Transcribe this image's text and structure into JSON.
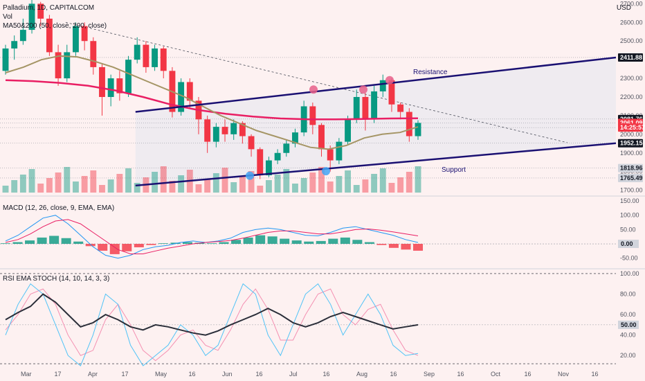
{
  "header": {
    "symbol_title": "Palladium, 1D, CAPITALCOM",
    "vol_label": "Vol",
    "ma_label": "MA50&200 (50, close, 200, close)",
    "currency": "USD"
  },
  "annotations": {
    "resistance": "Resistance",
    "support": "Support"
  },
  "price_tags": [
    {
      "label": "2411.88",
      "value": 2411.88,
      "bg": "#131722",
      "fg": "#ffffff"
    },
    {
      "label": "2081.76",
      "value": 2081.76,
      "bg": "#131722",
      "fg": "#ffffff"
    },
    {
      "label": "2061.09",
      "value": 2061.09,
      "bg": "#f23645",
      "fg": "#ffffff"
    },
    {
      "label": "14:25:57",
      "value": 2036,
      "bg": "#f23645",
      "fg": "#ffffff"
    },
    {
      "label": "1952.15",
      "value": 1952.15,
      "bg": "#131722",
      "fg": "#ffffff"
    },
    {
      "label": "1818.96",
      "value": 1818.96,
      "bg": "#d1d4dc",
      "fg": "#131722"
    },
    {
      "label": "1765.49",
      "value": 1765.49,
      "bg": "#d1d4dc",
      "fg": "#131722"
    }
  ],
  "macd_panel": {
    "title": "MACD (12, 26, close, 9, EMA, EMA)",
    "ticks": [
      "150.00",
      "100.00",
      "50.00",
      "0.00",
      "-50.00"
    ],
    "tick_values": [
      150,
      100,
      50,
      0,
      -50
    ],
    "last_tag": "0.00"
  },
  "rsi_panel": {
    "title": "RSI EMA STOCH (14, 10, 14, 3, 3)",
    "ticks": [
      "100.00",
      "80.00",
      "60.00",
      "40.00",
      "20.00"
    ],
    "tick_values": [
      100,
      80,
      60,
      40,
      20
    ],
    "last_tag": "50.00"
  },
  "colors": {
    "background": "#fdf1f1",
    "up": "#089981",
    "down": "#f23645",
    "ma50": "#a59565",
    "ma200": "#e91e63",
    "channel": "#1a1072",
    "macd_line": "#2196f3",
    "signal_line": "#e91e63"
  },
  "chart_data": {
    "type": "candlestick",
    "title": "Palladium, 1D, CAPITALCOM",
    "ylabel": "USD",
    "y_ticks": [
      2700,
      2600,
      2500,
      2400,
      2300,
      2200,
      2100,
      2000,
      1900,
      1800,
      1700
    ],
    "ylim": [
      1680,
      2720
    ],
    "x_tick_labels": [
      "Mar",
      "17",
      "Apr",
      "17",
      "May",
      "16",
      "Jun",
      "16",
      "Jul",
      "16",
      "Aug",
      "16",
      "Sep",
      "16",
      "Oct",
      "16",
      "Nov",
      "16"
    ],
    "candles_approx": [
      {
        "o": 2340,
        "c": 2460,
        "h": 2480,
        "l": 2320
      },
      {
        "o": 2460,
        "c": 2500,
        "h": 2530,
        "l": 2400
      },
      {
        "o": 2500,
        "c": 2560,
        "h": 2620,
        "l": 2480
      },
      {
        "o": 2560,
        "c": 2700,
        "h": 2720,
        "l": 2540
      },
      {
        "o": 2700,
        "c": 2620,
        "h": 2710,
        "l": 2580
      },
      {
        "o": 2620,
        "c": 2440,
        "h": 2640,
        "l": 2420
      },
      {
        "o": 2440,
        "c": 2300,
        "h": 2480,
        "l": 2260
      },
      {
        "o": 2300,
        "c": 2440,
        "h": 2480,
        "l": 2280
      },
      {
        "o": 2440,
        "c": 2580,
        "h": 2600,
        "l": 2420
      },
      {
        "o": 2580,
        "c": 2500,
        "h": 2600,
        "l": 2450
      },
      {
        "o": 2500,
        "c": 2360,
        "h": 2520,
        "l": 2320
      },
      {
        "o": 2360,
        "c": 2200,
        "h": 2380,
        "l": 2100
      },
      {
        "o": 2200,
        "c": 2300,
        "h": 2320,
        "l": 2150
      },
      {
        "o": 2300,
        "c": 2220,
        "h": 2340,
        "l": 2180
      },
      {
        "o": 2220,
        "c": 2400,
        "h": 2420,
        "l": 2200
      },
      {
        "o": 2400,
        "c": 2480,
        "h": 2520,
        "l": 2380
      },
      {
        "o": 2480,
        "c": 2360,
        "h": 2500,
        "l": 2330
      },
      {
        "o": 2360,
        "c": 2460,
        "h": 2480,
        "l": 2340
      },
      {
        "o": 2460,
        "c": 2340,
        "h": 2470,
        "l": 2300
      },
      {
        "o": 2340,
        "c": 2120,
        "h": 2360,
        "l": 2090
      },
      {
        "o": 2120,
        "c": 2280,
        "h": 2300,
        "l": 2100
      },
      {
        "o": 2280,
        "c": 2180,
        "h": 2300,
        "l": 2140
      },
      {
        "o": 2180,
        "c": 2080,
        "h": 2200,
        "l": 2000
      },
      {
        "o": 2080,
        "c": 1960,
        "h": 2100,
        "l": 1900
      },
      {
        "o": 1960,
        "c": 2040,
        "h": 2060,
        "l": 1930
      },
      {
        "o": 2040,
        "c": 2000,
        "h": 2080,
        "l": 1960
      },
      {
        "o": 2000,
        "c": 2060,
        "h": 2080,
        "l": 1970
      },
      {
        "o": 2060,
        "c": 1990,
        "h": 2070,
        "l": 1950
      },
      {
        "o": 1990,
        "c": 1920,
        "h": 2000,
        "l": 1880
      },
      {
        "o": 1920,
        "c": 1780,
        "h": 1930,
        "l": 1760
      },
      {
        "o": 1780,
        "c": 1860,
        "h": 1880,
        "l": 1770
      },
      {
        "o": 1860,
        "c": 1900,
        "h": 1920,
        "l": 1840
      },
      {
        "o": 1900,
        "c": 1950,
        "h": 1970,
        "l": 1880
      },
      {
        "o": 1950,
        "c": 2010,
        "h": 2030,
        "l": 1930
      },
      {
        "o": 2010,
        "c": 2150,
        "h": 2180,
        "l": 1990
      },
      {
        "o": 2150,
        "c": 2050,
        "h": 2170,
        "l": 2000
      },
      {
        "o": 2050,
        "c": 1920,
        "h": 2060,
        "l": 1880
      },
      {
        "o": 1920,
        "c": 1860,
        "h": 1940,
        "l": 1800
      },
      {
        "o": 1860,
        "c": 1960,
        "h": 1980,
        "l": 1840
      },
      {
        "o": 1960,
        "c": 2080,
        "h": 2100,
        "l": 1940
      },
      {
        "o": 2080,
        "c": 2200,
        "h": 2240,
        "l": 2060
      },
      {
        "o": 2200,
        "c": 2080,
        "h": 2220,
        "l": 2020
      },
      {
        "o": 2080,
        "c": 2230,
        "h": 2260,
        "l": 2060
      },
      {
        "o": 2230,
        "c": 2290,
        "h": 2320,
        "l": 2200
      },
      {
        "o": 2290,
        "c": 2160,
        "h": 2300,
        "l": 2120
      },
      {
        "o": 2160,
        "c": 2120,
        "h": 2170,
        "l": 2080
      },
      {
        "o": 2120,
        "c": 1990,
        "h": 2140,
        "l": 1960
      },
      {
        "o": 1990,
        "c": 2061,
        "h": 2075,
        "l": 1970
      }
    ],
    "ma50_approx": [
      2330,
      2360,
      2400,
      2420,
      2415,
      2390,
      2360,
      2320,
      2280,
      2240,
      2200,
      2150,
      2100,
      2060,
      2020,
      1990,
      1960,
      1930,
      1920,
      1940,
      1980,
      2000,
      2010,
      2040
    ],
    "ma200_approx": [
      2290,
      2285,
      2275,
      2260,
      2235,
      2200,
      2160,
      2130,
      2110,
      2095,
      2085,
      2080,
      2080,
      2082,
      2085,
      2086
    ],
    "channel": {
      "upper": [
        {
          "x": 0.22,
          "y": 2120
        },
        {
          "x": 1.0,
          "y": 2411.88
        }
      ],
      "lower": [
        {
          "x": 0.22,
          "y": 1725
        },
        {
          "x": 1.0,
          "y": 1952.15
        }
      ]
    },
    "volume_note": "volume bars overlaid at bottom of price pane",
    "macd_hist_approx": [
      2,
      6,
      12,
      22,
      28,
      20,
      8,
      -8,
      -24,
      -36,
      -26,
      -12,
      -4,
      2,
      4,
      6,
      4,
      2,
      6,
      14,
      22,
      30,
      26,
      18,
      12,
      8,
      10,
      18,
      22,
      14,
      6,
      -4,
      -14,
      -20,
      -24
    ],
    "macd_line_approx": [
      10,
      30,
      60,
      90,
      100,
      70,
      30,
      -10,
      -40,
      -50,
      -40,
      -20,
      -10,
      -5,
      5,
      10,
      5,
      10,
      20,
      40,
      50,
      55,
      50,
      40,
      30,
      28,
      40,
      55,
      60,
      50,
      40,
      30,
      15,
      5
    ],
    "signal_line_approx": [
      5,
      15,
      35,
      60,
      80,
      85,
      70,
      40,
      10,
      -20,
      -35,
      -35,
      -25,
      -15,
      -8,
      0,
      5,
      8,
      12,
      20,
      30,
      40,
      45,
      45,
      40,
      35,
      35,
      42,
      50,
      52,
      48,
      42,
      35,
      28
    ],
    "rsi_approx": [
      55,
      62,
      68,
      80,
      72,
      60,
      48,
      52,
      60,
      55,
      48,
      45,
      50,
      48,
      45,
      42,
      40,
      44,
      50,
      55,
      60,
      66,
      60,
      52,
      48,
      52,
      58,
      62,
      58,
      54,
      50,
      46,
      48,
      50
    ],
    "stoch_k_approx": [
      40,
      70,
      90,
      80,
      50,
      20,
      10,
      40,
      80,
      70,
      30,
      10,
      20,
      30,
      50,
      40,
      20,
      30,
      60,
      90,
      80,
      40,
      20,
      50,
      80,
      90,
      70,
      40,
      60,
      80,
      60,
      30,
      20,
      22
    ],
    "stoch_d_approx": [
      45,
      60,
      80,
      85,
      70,
      40,
      20,
      25,
      55,
      70,
      50,
      25,
      15,
      25,
      40,
      45,
      30,
      25,
      45,
      70,
      85,
      65,
      35,
      35,
      60,
      80,
      85,
      60,
      50,
      65,
      70,
      45,
      25,
      20
    ]
  }
}
